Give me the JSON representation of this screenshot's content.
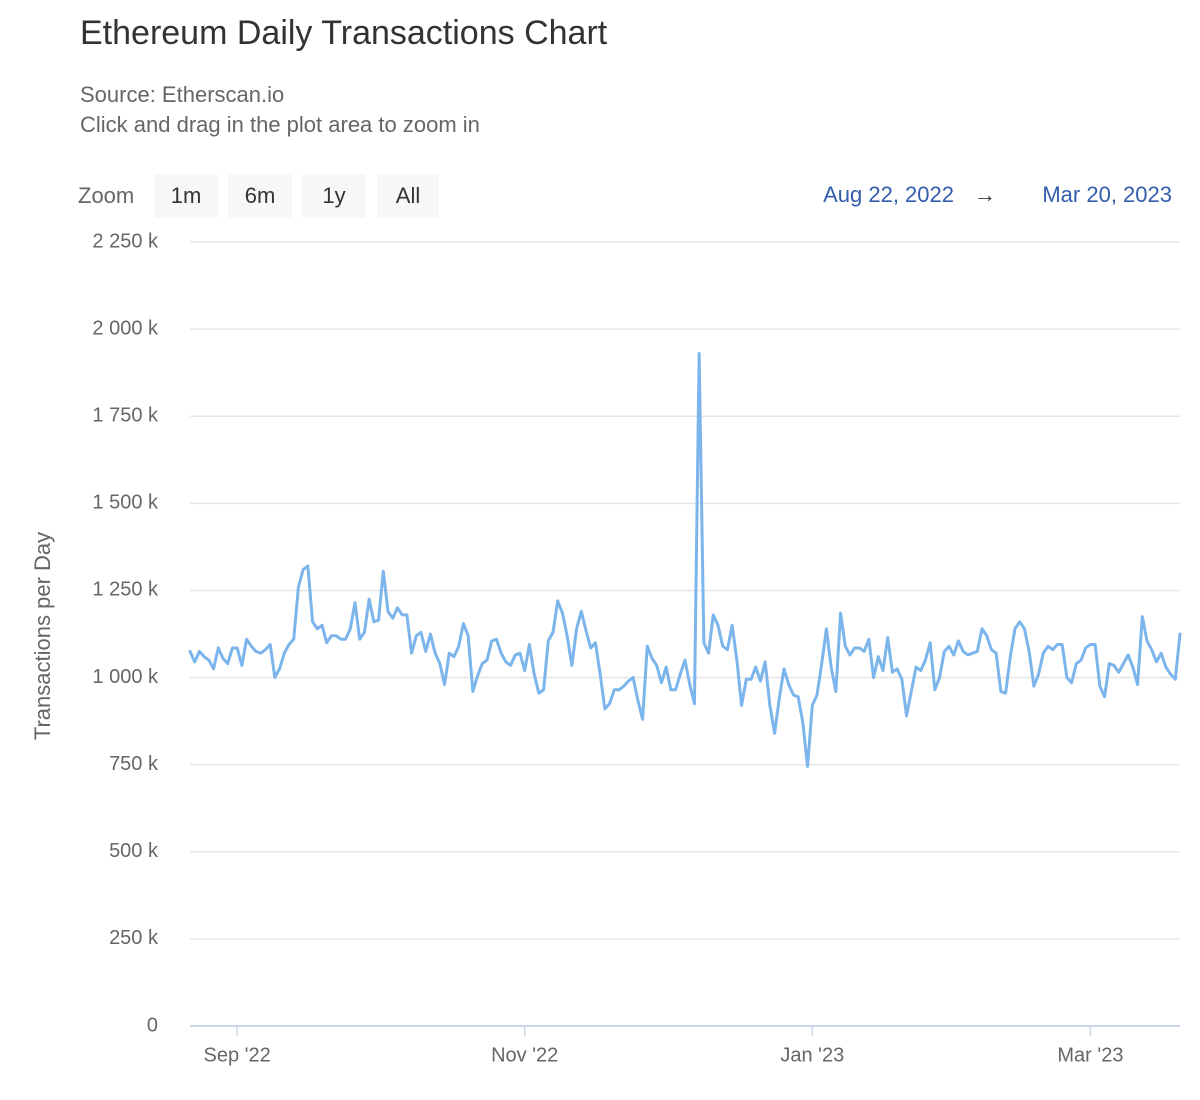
{
  "chart_data": {
    "type": "line",
    "title": "Ethereum Daily Transactions Chart",
    "subtitle": [
      "Source: Etherscan.io",
      "Click and drag in the plot area to zoom in"
    ],
    "zoom_label": "Zoom",
    "zoom_buttons": [
      "1m",
      "6m",
      "1y",
      "All"
    ],
    "date_range": {
      "from": "Aug 22, 2022",
      "separator": "→",
      "to": "Mar 20, 2023"
    },
    "y_label": "Transactions per Day",
    "grid": true,
    "xlim": [
      "2022-08-22",
      "2023-03-20"
    ],
    "xticks": [
      {
        "value": "2022-09-01",
        "label": "Sep '22"
      },
      {
        "value": "2022-11-01",
        "label": "Nov '22"
      },
      {
        "value": "2023-01-01",
        "label": "Jan '23"
      },
      {
        "value": "2023-03-01",
        "label": "Mar '23"
      }
    ],
    "ylim": [
      0,
      2250000
    ],
    "yticks": [
      0,
      {
        "value": 250000,
        "label": "250 k"
      },
      {
        "value": 500000,
        "label": "500 k"
      },
      {
        "value": 750000,
        "label": "750 k"
      },
      {
        "value": 1000000,
        "label": "1 000 k"
      },
      {
        "value": 1250000,
        "label": "1 250 k"
      },
      {
        "value": 1500000,
        "label": "1 500 k"
      },
      {
        "value": 1750000,
        "label": "1 750 k"
      },
      {
        "value": 2000000,
        "label": "2 000 k"
      },
      {
        "value": 2250000,
        "label": "2 250 k"
      }
    ],
    "x": [
      "2022-08-22",
      "2022-08-23",
      "2022-08-24",
      "2022-08-25",
      "2022-08-26",
      "2022-08-27",
      "2022-08-28",
      "2022-08-29",
      "2022-08-30",
      "2022-08-31",
      "2022-09-01",
      "2022-09-02",
      "2022-09-03",
      "2022-09-04",
      "2022-09-05",
      "2022-09-06",
      "2022-09-07",
      "2022-09-08",
      "2022-09-09",
      "2022-09-10",
      "2022-09-11",
      "2022-09-12",
      "2022-09-13",
      "2022-09-14",
      "2022-09-15",
      "2022-09-16",
      "2022-09-17",
      "2022-09-18",
      "2022-09-19",
      "2022-09-20",
      "2022-09-21",
      "2022-09-22",
      "2022-09-23",
      "2022-09-24",
      "2022-09-25",
      "2022-09-26",
      "2022-09-27",
      "2022-09-28",
      "2022-09-29",
      "2022-09-30",
      "2022-10-01",
      "2022-10-02",
      "2022-10-03",
      "2022-10-04",
      "2022-10-05",
      "2022-10-06",
      "2022-10-07",
      "2022-10-08",
      "2022-10-09",
      "2022-10-10",
      "2022-10-11",
      "2022-10-12",
      "2022-10-13",
      "2022-10-14",
      "2022-10-15",
      "2022-10-16",
      "2022-10-17",
      "2022-10-18",
      "2022-10-19",
      "2022-10-20",
      "2022-10-21",
      "2022-10-22",
      "2022-10-23",
      "2022-10-24",
      "2022-10-25",
      "2022-10-26",
      "2022-10-27",
      "2022-10-28",
      "2022-10-29",
      "2022-10-30",
      "2022-10-31",
      "2022-11-01",
      "2022-11-02",
      "2022-11-03",
      "2022-11-04",
      "2022-11-05",
      "2022-11-06",
      "2022-11-07",
      "2022-11-08",
      "2022-11-09",
      "2022-11-10",
      "2022-11-11",
      "2022-11-12",
      "2022-11-13",
      "2022-11-14",
      "2022-11-15",
      "2022-11-16",
      "2022-11-17",
      "2022-11-18",
      "2022-11-19",
      "2022-11-20",
      "2022-11-21",
      "2022-11-22",
      "2022-11-23",
      "2022-11-24",
      "2022-11-25",
      "2022-11-26",
      "2022-11-27",
      "2022-11-28",
      "2022-11-29",
      "2022-11-30",
      "2022-12-01",
      "2022-12-02",
      "2022-12-03",
      "2022-12-04",
      "2022-12-05",
      "2022-12-06",
      "2022-12-07",
      "2022-12-08",
      "2022-12-09",
      "2022-12-10",
      "2022-12-11",
      "2022-12-12",
      "2022-12-13",
      "2022-12-14",
      "2022-12-15",
      "2022-12-16",
      "2022-12-17",
      "2022-12-18",
      "2022-12-19",
      "2022-12-20",
      "2022-12-21",
      "2022-12-22",
      "2022-12-23",
      "2022-12-24",
      "2022-12-25",
      "2022-12-26",
      "2022-12-27",
      "2022-12-28",
      "2022-12-29",
      "2022-12-30",
      "2022-12-31",
      "2023-01-01",
      "2023-01-02",
      "2023-01-03",
      "2023-01-04",
      "2023-01-05",
      "2023-01-06",
      "2023-01-07",
      "2023-01-08",
      "2023-01-09",
      "2023-01-10",
      "2023-01-11",
      "2023-01-12",
      "2023-01-13",
      "2023-01-14",
      "2023-01-15",
      "2023-01-16",
      "2023-01-17",
      "2023-01-18",
      "2023-01-19",
      "2023-01-20",
      "2023-01-21",
      "2023-01-22",
      "2023-01-23",
      "2023-01-24",
      "2023-01-25",
      "2023-01-26",
      "2023-01-27",
      "2023-01-28",
      "2023-01-29",
      "2023-01-30",
      "2023-01-31",
      "2023-02-01",
      "2023-02-02",
      "2023-02-03",
      "2023-02-04",
      "2023-02-05",
      "2023-02-06",
      "2023-02-07",
      "2023-02-08",
      "2023-02-09",
      "2023-02-10",
      "2023-02-11",
      "2023-02-12",
      "2023-02-13",
      "2023-02-14",
      "2023-02-15",
      "2023-02-16",
      "2023-02-17",
      "2023-02-18",
      "2023-02-19",
      "2023-02-20",
      "2023-02-21",
      "2023-02-22",
      "2023-02-23",
      "2023-02-24",
      "2023-02-25",
      "2023-02-26",
      "2023-02-27",
      "2023-02-28",
      "2023-03-01",
      "2023-03-02",
      "2023-03-03",
      "2023-03-04",
      "2023-03-05",
      "2023-03-06",
      "2023-03-07",
      "2023-03-08",
      "2023-03-09",
      "2023-03-10",
      "2023-03-11",
      "2023-03-12",
      "2023-03-13",
      "2023-03-14",
      "2023-03-15",
      "2023-03-16",
      "2023-03-17",
      "2023-03-18",
      "2023-03-19",
      "2023-03-20"
    ],
    "series": [
      {
        "name": "Transactions per Day",
        "color": "#7cb5ec",
        "values": [
          1075000,
          1045000,
          1075000,
          1060000,
          1050000,
          1025000,
          1085000,
          1055000,
          1040000,
          1085000,
          1085000,
          1035000,
          1110000,
          1090000,
          1075000,
          1070000,
          1080000,
          1095000,
          1000000,
          1025000,
          1070000,
          1095000,
          1110000,
          1260000,
          1310000,
          1320000,
          1160000,
          1140000,
          1150000,
          1100000,
          1120000,
          1120000,
          1110000,
          1110000,
          1140000,
          1215000,
          1110000,
          1130000,
          1225000,
          1160000,
          1165000,
          1305000,
          1190000,
          1170000,
          1200000,
          1180000,
          1180000,
          1070000,
          1120000,
          1130000,
          1075000,
          1125000,
          1070000,
          1040000,
          980000,
          1070000,
          1060000,
          1090000,
          1155000,
          1120000,
          960000,
          1005000,
          1040000,
          1050000,
          1105000,
          1110000,
          1070000,
          1045000,
          1035000,
          1065000,
          1070000,
          1020000,
          1095000,
          1010000,
          955000,
          965000,
          1105000,
          1130000,
          1220000,
          1185000,
          1120000,
          1035000,
          1140000,
          1190000,
          1135000,
          1085000,
          1100000,
          1010000,
          910000,
          925000,
          965000,
          965000,
          975000,
          990000,
          1000000,
          935000,
          880000,
          1090000,
          1055000,
          1035000,
          985000,
          1030000,
          965000,
          965000,
          1010000,
          1050000,
          980000,
          925000,
          1930000,
          1100000,
          1070000,
          1180000,
          1150000,
          1090000,
          1080000,
          1150000,
          1050000,
          920000,
          995000,
          995000,
          1030000,
          990000,
          1045000,
          920000,
          840000,
          940000,
          1025000,
          980000,
          950000,
          945000,
          870000,
          745000,
          920000,
          950000,
          1040000,
          1140000,
          1030000,
          960000,
          1185000,
          1090000,
          1065000,
          1085000,
          1085000,
          1075000,
          1110000,
          1000000,
          1060000,
          1020000,
          1115000,
          1015000,
          1025000,
          995000,
          890000,
          960000,
          1030000,
          1020000,
          1050000,
          1100000,
          965000,
          1000000,
          1075000,
          1090000,
          1065000,
          1105000,
          1075000,
          1065000,
          1070000,
          1075000,
          1140000,
          1120000,
          1080000,
          1070000,
          960000,
          955000,
          1060000,
          1140000,
          1160000,
          1140000,
          1075000,
          975000,
          1010000,
          1070000,
          1090000,
          1080000,
          1095000,
          1095000,
          1000000,
          985000,
          1040000,
          1050000,
          1085000,
          1095000,
          1095000,
          975000,
          945000,
          1040000,
          1035000,
          1015000,
          1040000,
          1065000,
          1030000,
          980000,
          1175000,
          1105000,
          1080000,
          1045000,
          1070000,
          1030000,
          1010000,
          995000,
          1125000
        ]
      }
    ]
  }
}
